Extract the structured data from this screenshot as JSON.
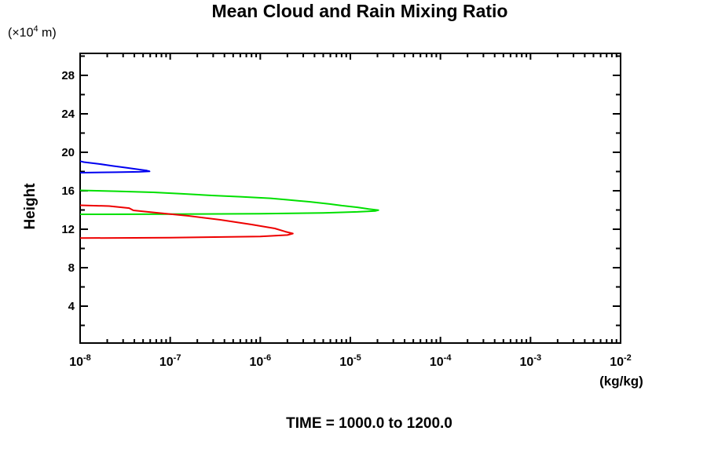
{
  "header": {
    "title": "Mean Cloud and Rain Mixing Ratio"
  },
  "footer": {
    "time_label": "TIME = 1000.0 to 1200.0"
  },
  "chart_data": {
    "type": "line",
    "title": "Mean Cloud and Rain Mixing Ratio",
    "subtitle": "TIME = 1000.0 to 1200.0",
    "background_color": "#ffffff",
    "axis_color": "#000000",
    "grid": false,
    "legend": "none",
    "y_unit": {
      "prefix": "(×10",
      "sup": "4",
      "suffix": " m)"
    },
    "x_axis": {
      "scale": "log10",
      "min": 1e-08,
      "max": 0.01,
      "tick_label_base": "10",
      "tick_exponents": [
        -8,
        -7,
        -6,
        -5,
        -4,
        -3,
        -2
      ],
      "minor_ticks": "log decades 2-9",
      "unit": "(kg/kg)"
    },
    "y_axis": {
      "label": "Height",
      "unit": "×10^4 m",
      "min": 0,
      "max": 30,
      "major_ticks": [
        4,
        8,
        12,
        16,
        20,
        24,
        28
      ],
      "minor_tick_step": 2
    },
    "series": [
      {
        "id": "blue",
        "name": "blue profile (upper layer ~18-19)",
        "color": "#0000f0",
        "points_format": "[mixing_ratio_kg_per_kg, height_1e4_m]",
        "points": [
          [
            1e-08,
            17.88
          ],
          [
            2.5e-08,
            17.93
          ],
          [
            4.5e-08,
            17.97
          ],
          [
            5.9e-08,
            18.02
          ],
          [
            5.5e-08,
            18.1
          ],
          [
            4.4e-08,
            18.22
          ],
          [
            3.3e-08,
            18.38
          ],
          [
            2.3e-08,
            18.58
          ],
          [
            1.6e-08,
            18.8
          ],
          [
            1.1e-08,
            18.98
          ],
          [
            1e-08,
            19.08
          ]
        ]
      },
      {
        "id": "green",
        "name": "green profile (peak ~2e-5 at height ~14)",
        "color": "#00e000",
        "points_format": "[mixing_ratio_kg_per_kg, height_1e4_m]",
        "points": [
          [
            1e-08,
            13.55
          ],
          [
            1e-07,
            13.57
          ],
          [
            1e-06,
            13.62
          ],
          [
            5e-06,
            13.7
          ],
          [
            1.2e-05,
            13.8
          ],
          [
            1.9e-05,
            13.9
          ],
          [
            2.05e-05,
            13.98
          ],
          [
            1.6e-05,
            14.1
          ],
          [
            1.2e-05,
            14.28
          ],
          [
            8e-06,
            14.46
          ],
          [
            5.9e-06,
            14.62
          ],
          [
            3.5e-06,
            14.86
          ],
          [
            2e-06,
            15.06
          ],
          [
            1.3e-06,
            15.22
          ],
          [
            6e-07,
            15.38
          ],
          [
            2.9e-07,
            15.51
          ],
          [
            1.3e-07,
            15.7
          ],
          [
            6.5e-08,
            15.84
          ],
          [
            2.5e-08,
            15.95
          ],
          [
            1e-08,
            16.04
          ]
        ]
      },
      {
        "id": "red",
        "name": "red profile (peak ~2.3e-6 at height ~11.5)",
        "color": "#ee0000",
        "points_format": "[mixing_ratio_kg_per_kg, height_1e4_m]",
        "points": [
          [
            1e-08,
            11.08
          ],
          [
            1e-07,
            11.12
          ],
          [
            1e-06,
            11.25
          ],
          [
            2e-06,
            11.4
          ],
          [
            2.3e-06,
            11.55
          ],
          [
            1.9e-06,
            11.75
          ],
          [
            1.45e-06,
            12.08
          ],
          [
            8e-07,
            12.49
          ],
          [
            3.6e-07,
            12.98
          ],
          [
            1.6e-07,
            13.39
          ],
          [
            7.2e-08,
            13.71
          ],
          [
            3.9e-08,
            13.96
          ],
          [
            3.5e-08,
            14.2
          ],
          [
            2.1e-08,
            14.41
          ],
          [
            1e-08,
            14.49
          ]
        ]
      }
    ]
  }
}
